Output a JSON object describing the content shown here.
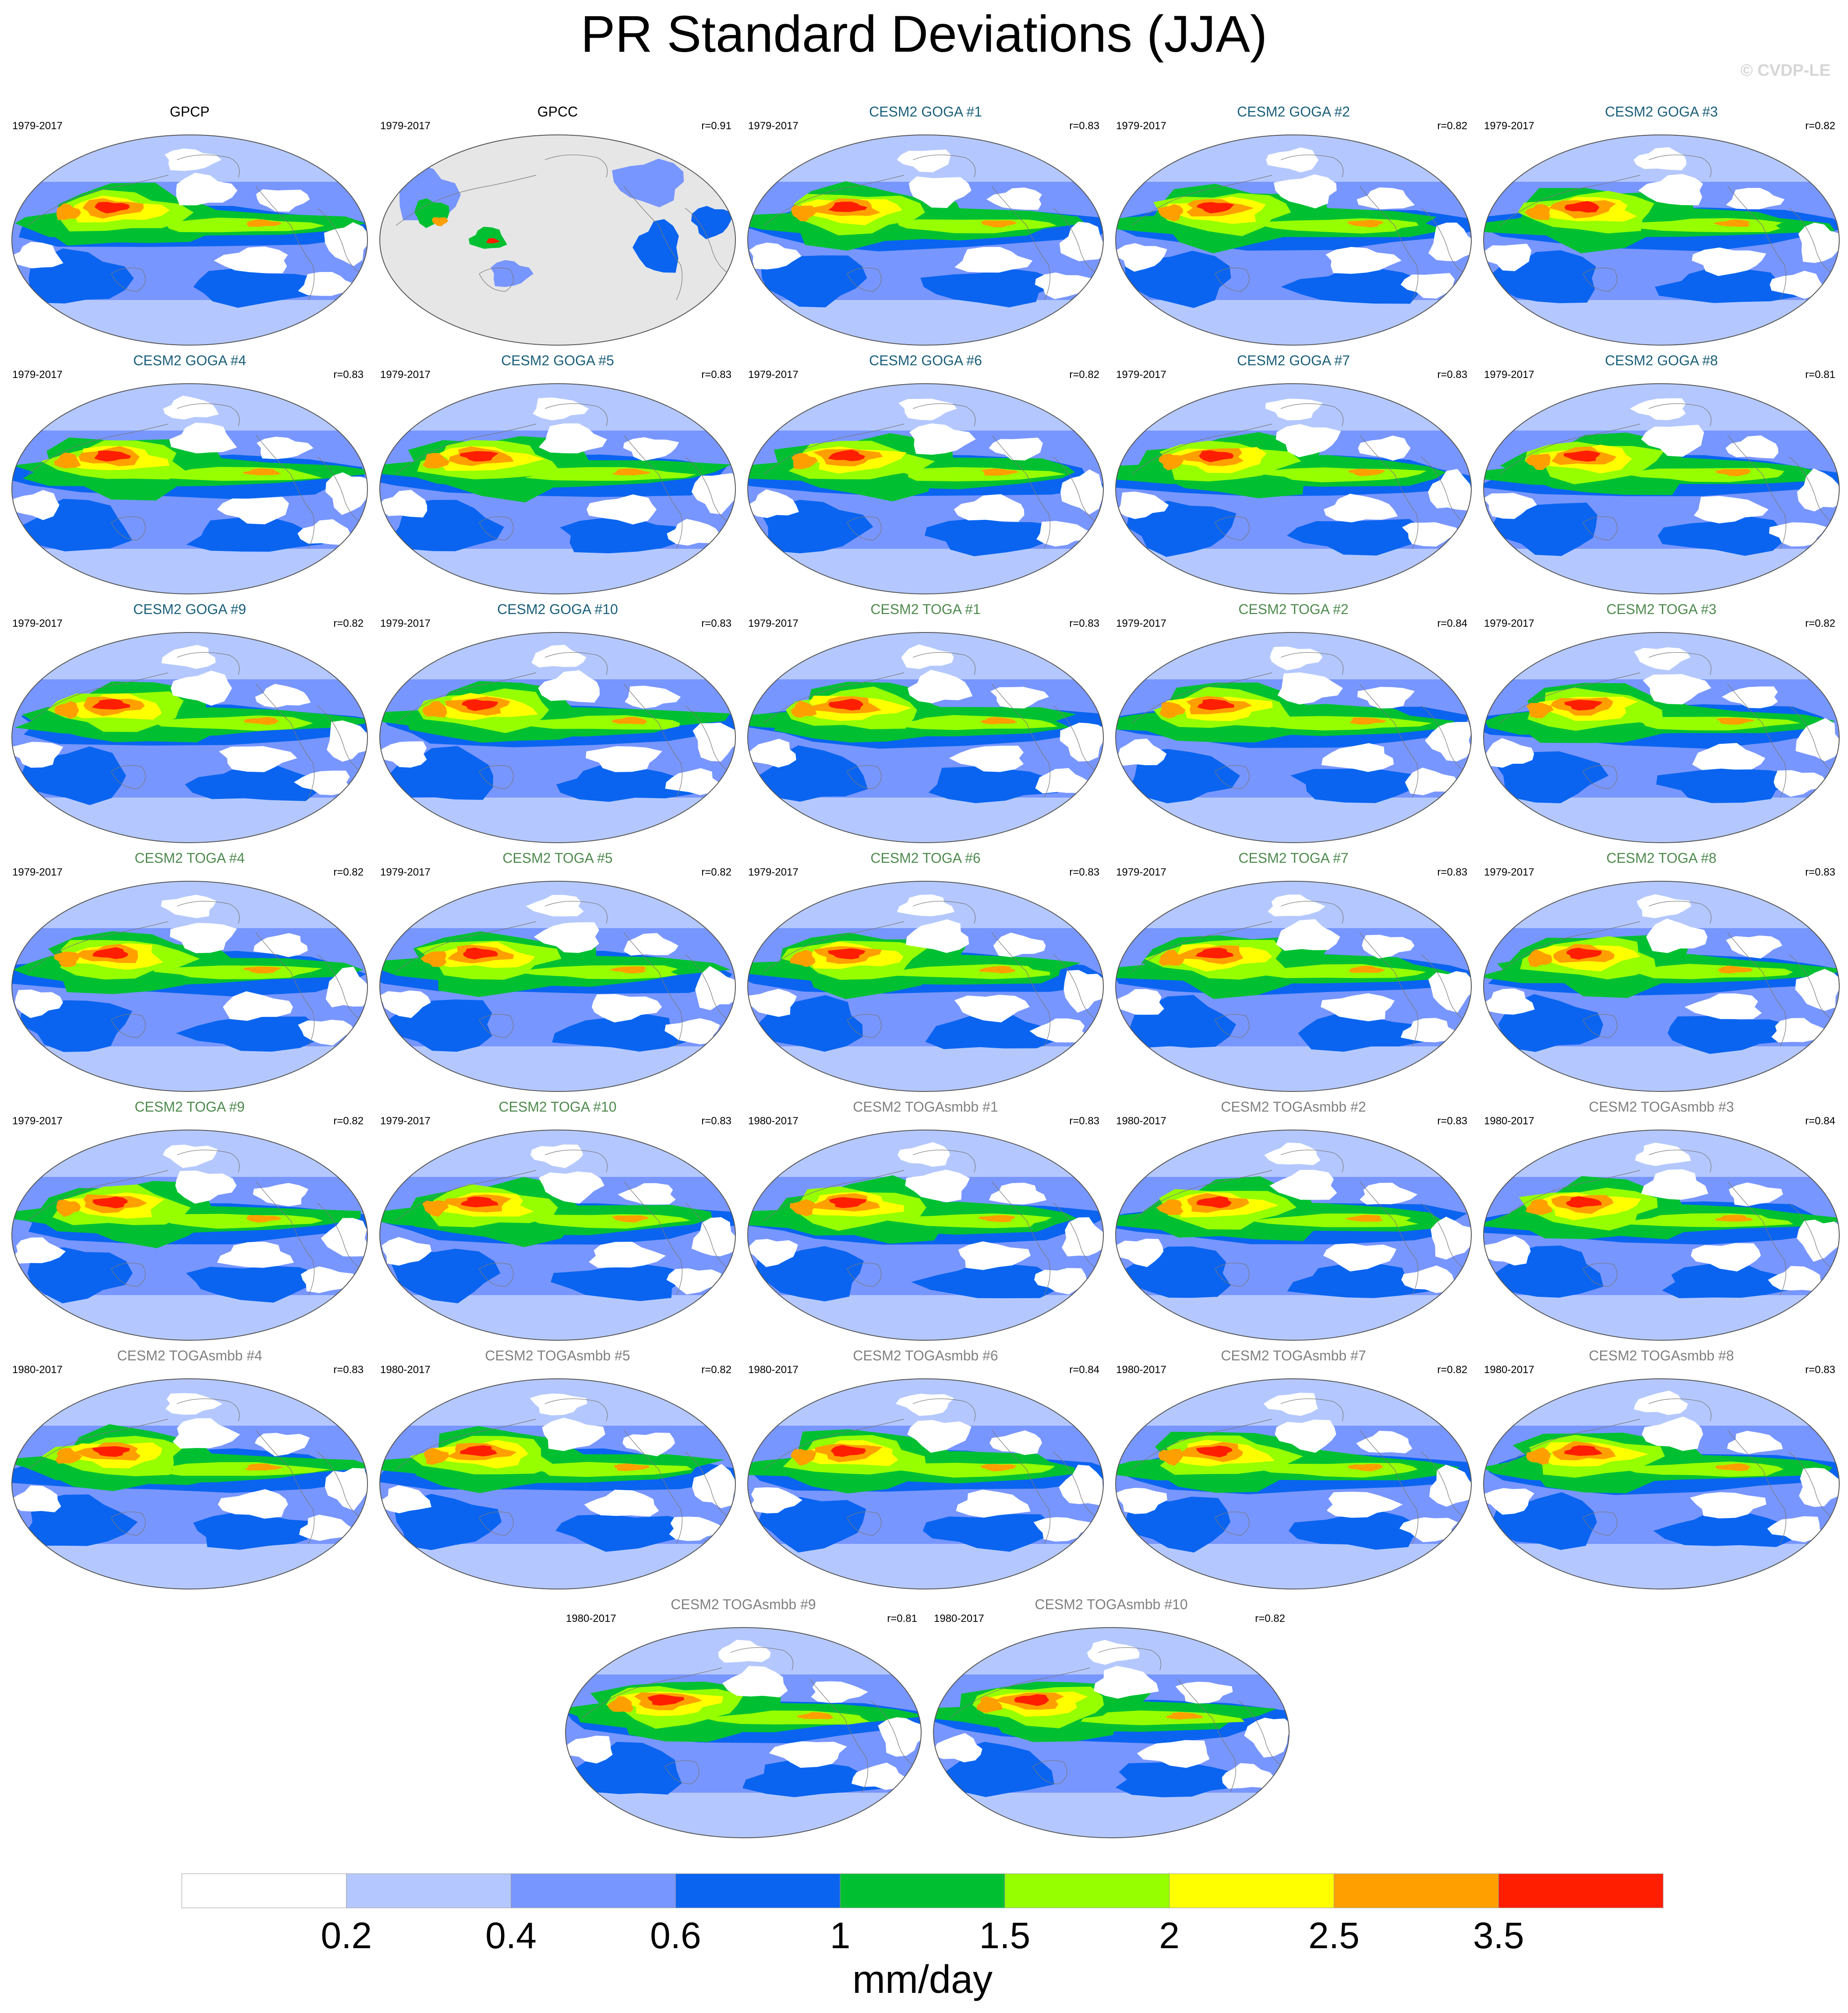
{
  "figure": {
    "title": "PR Standard Deviations (JJA)",
    "copyright": "© CVDP-LE"
  },
  "colors": {
    "land": "#e6e6e6",
    "coast": "#777777",
    "obs_title": "#000000",
    "goga_title": "#1a5f7a",
    "toga_title": "#4e8a4e",
    "togasmbb_title": "#808080"
  },
  "colorbar": {
    "unit": "mm/day",
    "tick_labels": [
      "0.2",
      "0.4",
      "0.6",
      "1",
      "1.5",
      "2",
      "2.5",
      "3.5"
    ],
    "colors": [
      "#ffffff",
      "#b4c8ff",
      "#7896ff",
      "#0a64f0",
      "#00c032",
      "#96ff00",
      "#ffff00",
      "#ffa000",
      "#ff1e00"
    ]
  },
  "panels": [
    {
      "title": "GPCP",
      "years": "1979-2017",
      "r": "",
      "group": "obs"
    },
    {
      "title": "GPCC",
      "years": "1979-2017",
      "r": "r=0.91",
      "group": "obs",
      "land_only": true
    },
    {
      "title": "CESM2 GOGA #1",
      "years": "1979-2017",
      "r": "r=0.83",
      "group": "goga"
    },
    {
      "title": "CESM2 GOGA #2",
      "years": "1979-2017",
      "r": "r=0.82",
      "group": "goga"
    },
    {
      "title": "CESM2 GOGA #3",
      "years": "1979-2017",
      "r": "r=0.82",
      "group": "goga"
    },
    {
      "title": "CESM2 GOGA #4",
      "years": "1979-2017",
      "r": "r=0.83",
      "group": "goga"
    },
    {
      "title": "CESM2 GOGA #5",
      "years": "1979-2017",
      "r": "r=0.83",
      "group": "goga"
    },
    {
      "title": "CESM2 GOGA #6",
      "years": "1979-2017",
      "r": "r=0.82",
      "group": "goga"
    },
    {
      "title": "CESM2 GOGA #7",
      "years": "1979-2017",
      "r": "r=0.83",
      "group": "goga"
    },
    {
      "title": "CESM2 GOGA #8",
      "years": "1979-2017",
      "r": "r=0.81",
      "group": "goga"
    },
    {
      "title": "CESM2 GOGA #9",
      "years": "1979-2017",
      "r": "r=0.82",
      "group": "goga"
    },
    {
      "title": "CESM2 GOGA #10",
      "years": "1979-2017",
      "r": "r=0.83",
      "group": "goga"
    },
    {
      "title": "CESM2 TOGA #1",
      "years": "1979-2017",
      "r": "r=0.83",
      "group": "toga"
    },
    {
      "title": "CESM2 TOGA #2",
      "years": "1979-2017",
      "r": "r=0.84",
      "group": "toga"
    },
    {
      "title": "CESM2 TOGA #3",
      "years": "1979-2017",
      "r": "r=0.82",
      "group": "toga"
    },
    {
      "title": "CESM2 TOGA #4",
      "years": "1979-2017",
      "r": "r=0.82",
      "group": "toga"
    },
    {
      "title": "CESM2 TOGA #5",
      "years": "1979-2017",
      "r": "r=0.82",
      "group": "toga"
    },
    {
      "title": "CESM2 TOGA #6",
      "years": "1979-2017",
      "r": "r=0.83",
      "group": "toga"
    },
    {
      "title": "CESM2 TOGA #7",
      "years": "1979-2017",
      "r": "r=0.83",
      "group": "toga"
    },
    {
      "title": "CESM2 TOGA #8",
      "years": "1979-2017",
      "r": "r=0.83",
      "group": "toga"
    },
    {
      "title": "CESM2 TOGA #9",
      "years": "1979-2017",
      "r": "r=0.82",
      "group": "toga"
    },
    {
      "title": "CESM2 TOGA #10",
      "years": "1979-2017",
      "r": "r=0.83",
      "group": "toga"
    },
    {
      "title": "CESM2 TOGAsmbb #1",
      "years": "1980-2017",
      "r": "r=0.83",
      "group": "togasmbb"
    },
    {
      "title": "CESM2 TOGAsmbb #2",
      "years": "1980-2017",
      "r": "r=0.83",
      "group": "togasmbb"
    },
    {
      "title": "CESM2 TOGAsmbb #3",
      "years": "1980-2017",
      "r": "r=0.84",
      "group": "togasmbb"
    },
    {
      "title": "CESM2 TOGAsmbb #4",
      "years": "1980-2017",
      "r": "r=0.83",
      "group": "togasmbb"
    },
    {
      "title": "CESM2 TOGAsmbb #5",
      "years": "1980-2017",
      "r": "r=0.82",
      "group": "togasmbb"
    },
    {
      "title": "CESM2 TOGAsmbb #6",
      "years": "1980-2017",
      "r": "r=0.84",
      "group": "togasmbb"
    },
    {
      "title": "CESM2 TOGAsmbb #7",
      "years": "1980-2017",
      "r": "r=0.82",
      "group": "togasmbb"
    },
    {
      "title": "CESM2 TOGAsmbb #8",
      "years": "1980-2017",
      "r": "r=0.83",
      "group": "togasmbb"
    },
    {
      "title": "CESM2 TOGAsmbb #9",
      "years": "1980-2017",
      "r": "r=0.81",
      "group": "togasmbb"
    },
    {
      "title": "CESM2 TOGAsmbb #10",
      "years": "1980-2017",
      "r": "r=0.82",
      "group": "togasmbb"
    }
  ]
}
